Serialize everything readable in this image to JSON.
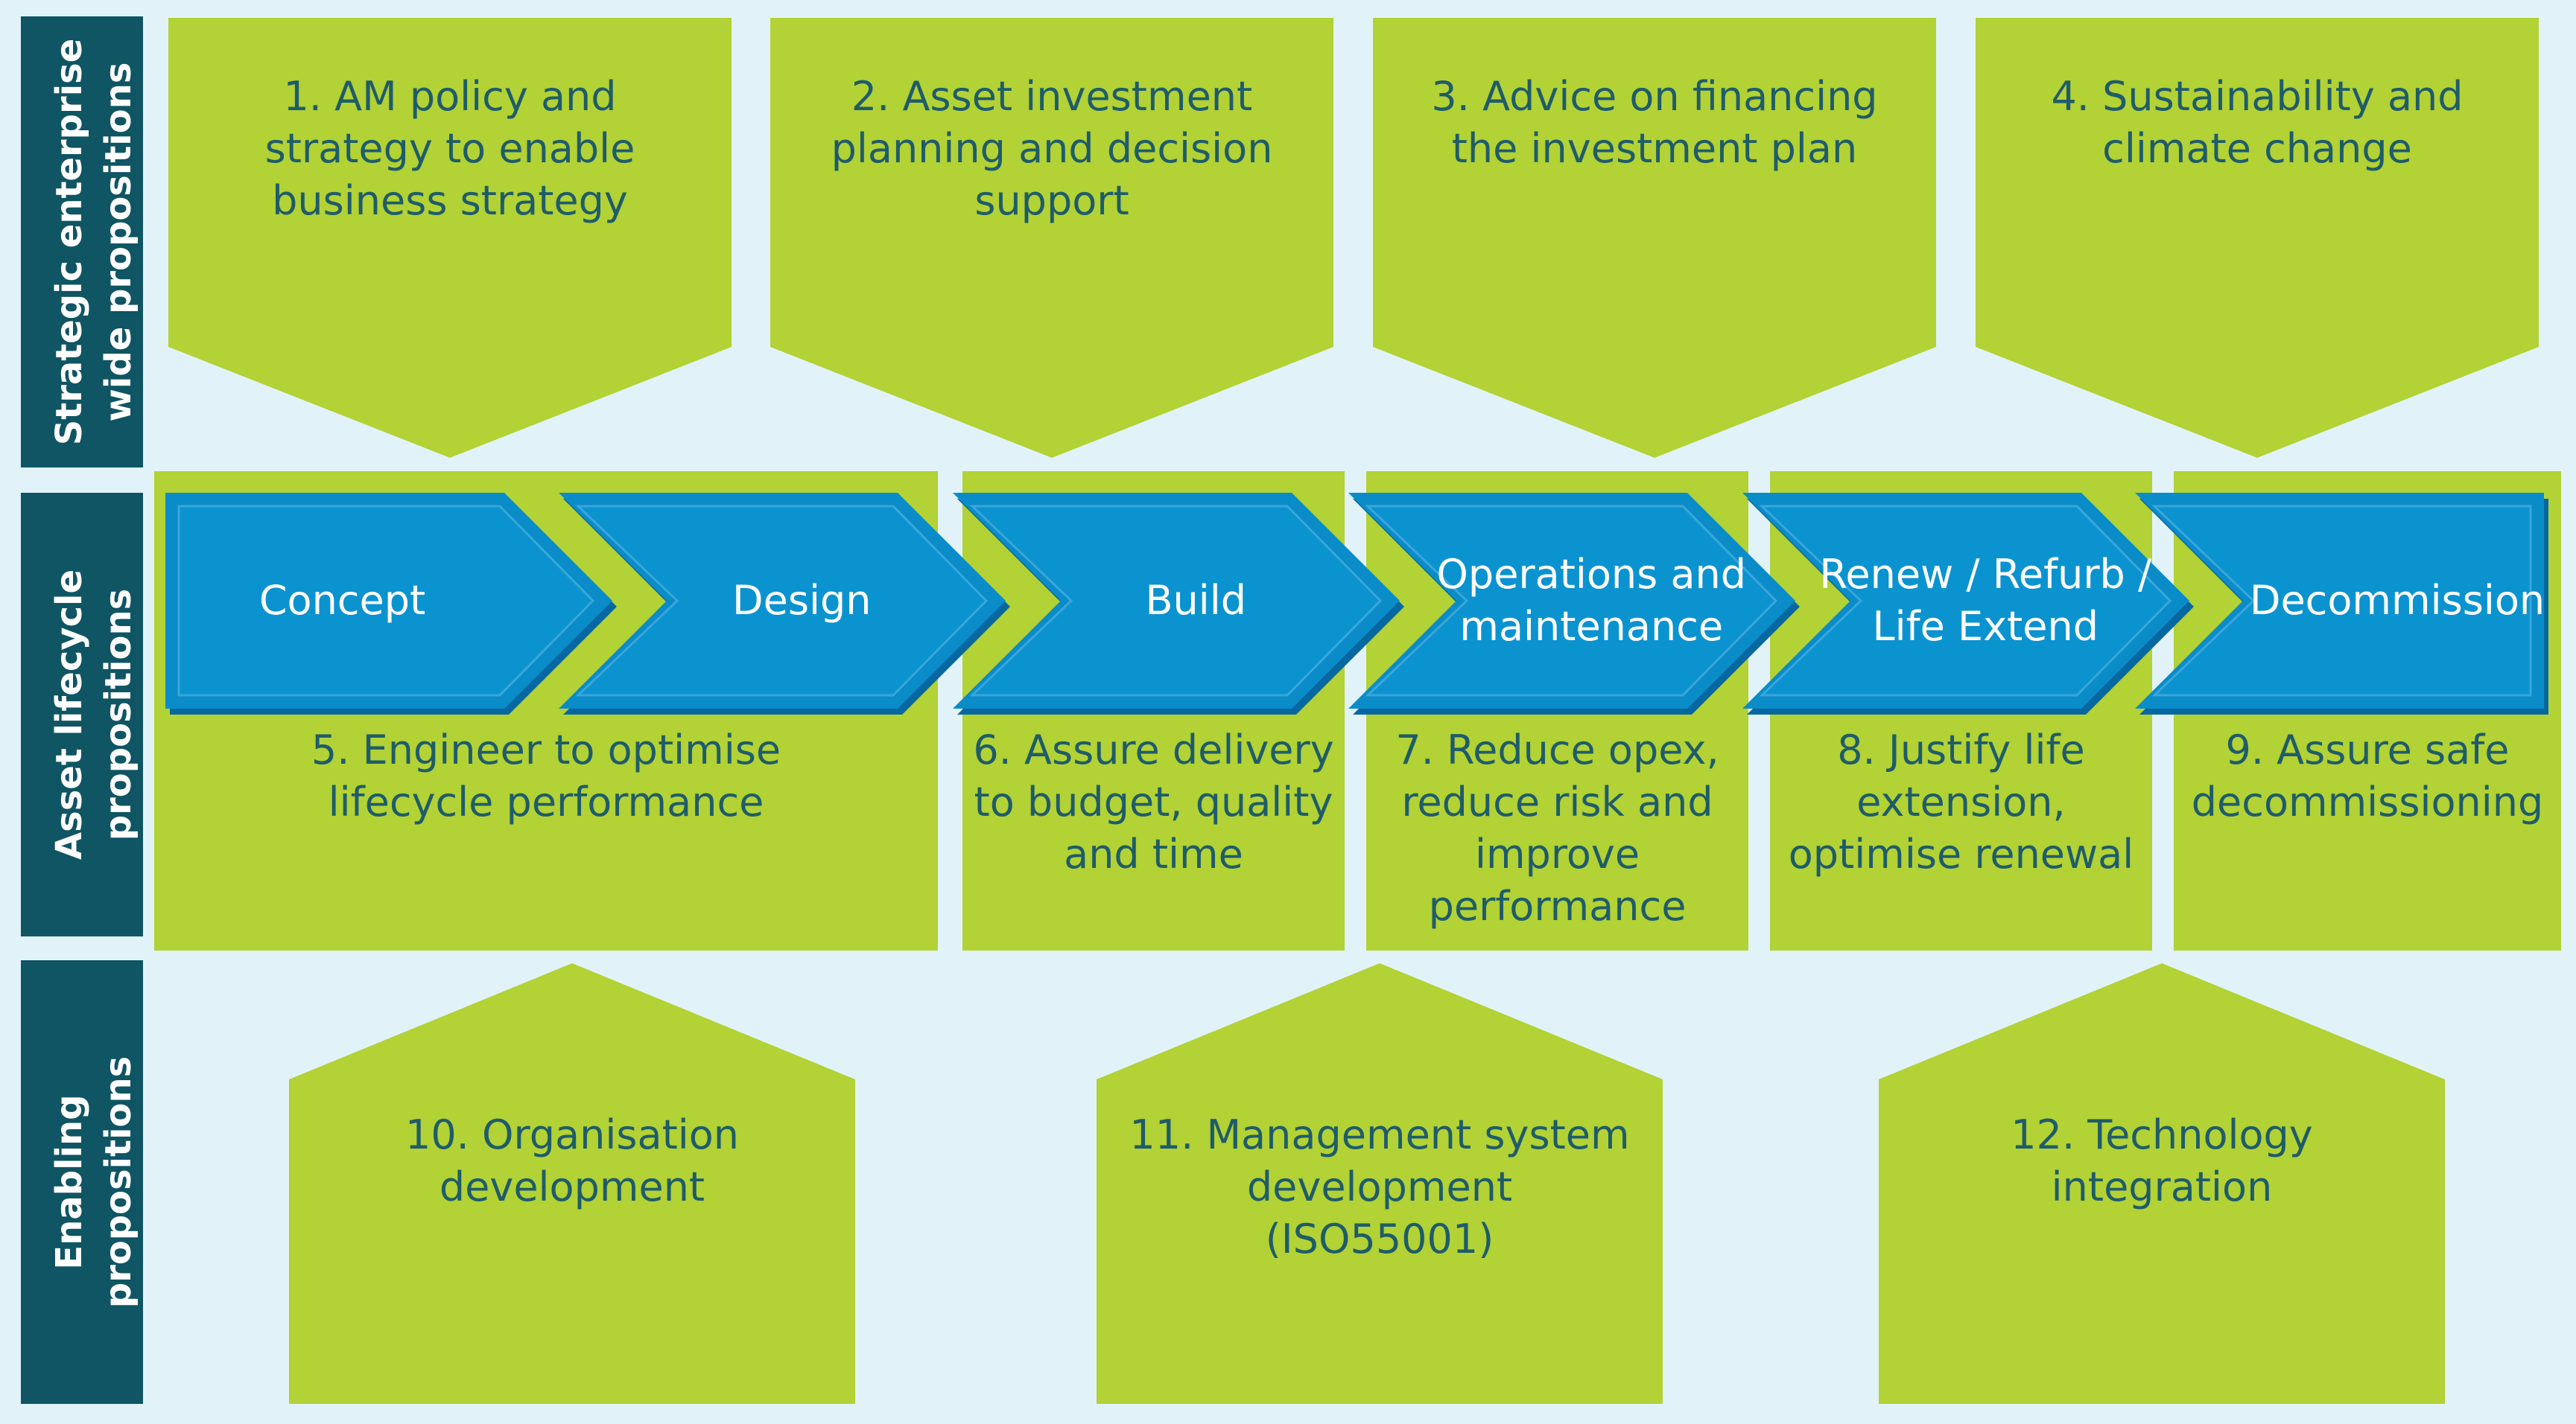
{
  "colors": {
    "background": "#e1f3f9",
    "green": "#b2d235",
    "green_text": "#1f5c6a",
    "teal_band": "#0f5563",
    "arrow_blue": "#0a8cc9",
    "arrow_dark": "#0767a0",
    "arrow_light": "#3aa6da",
    "white": "#ffffff"
  },
  "row_labels": [
    {
      "lines": [
        "Strategic enterprise",
        "wide propositions"
      ]
    },
    {
      "lines": [
        "Asset lifecycle",
        "propositions"
      ]
    },
    {
      "lines": [
        "Enabling",
        "propositions"
      ]
    }
  ],
  "strategic": [
    {
      "lines": [
        "1.  AM policy and",
        "strategy to enable",
        "business strategy"
      ]
    },
    {
      "lines": [
        "2.  Asset investment",
        "planning and decision",
        "support"
      ]
    },
    {
      "lines": [
        "3.  Advice on financing",
        "the investment plan"
      ]
    },
    {
      "lines": [
        "4.  Sustainability and",
        "climate change"
      ]
    }
  ],
  "lifecycle_stages": [
    {
      "lines": [
        "Concept"
      ]
    },
    {
      "lines": [
        "Design"
      ]
    },
    {
      "lines": [
        "Build"
      ]
    },
    {
      "lines": [
        "Operations and",
        "maintenance"
      ]
    },
    {
      "lines": [
        "Renew / Refurb /",
        "Life Extend"
      ]
    },
    {
      "lines": [
        "Decommission"
      ]
    }
  ],
  "lifecycle_props": [
    {
      "lines": [
        "5.  Engineer to optimise",
        "lifecycle performance"
      ]
    },
    {
      "lines": [
        "6.  Assure delivery",
        "to budget, quality",
        "and time"
      ]
    },
    {
      "lines": [
        "7.  Reduce opex,",
        "reduce risk and",
        "improve",
        "performance"
      ]
    },
    {
      "lines": [
        "8.  Justify life",
        "extension,",
        "optimise renewal"
      ]
    },
    {
      "lines": [
        "9.  Assure safe",
        "decommissioning"
      ]
    }
  ],
  "enabling": [
    {
      "lines": [
        "10. Organisation",
        "development"
      ]
    },
    {
      "lines": [
        "11. Management system",
        "development",
        "(ISO55001)"
      ]
    },
    {
      "lines": [
        "12. Technology",
        "integration"
      ]
    }
  ]
}
